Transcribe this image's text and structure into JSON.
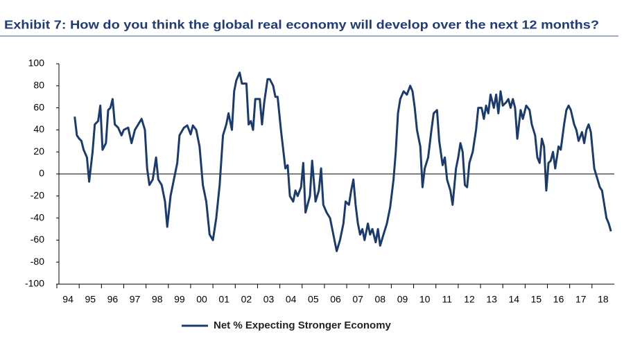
{
  "chart_data": {
    "type": "line",
    "title": "Exhibit 7: How do you think the global real economy will develop over the next 12 months?",
    "xlim": [
      1994,
      2019
    ],
    "xticks": [
      {
        "value": 1994,
        "label": "94"
      },
      {
        "value": 1995,
        "label": "95"
      },
      {
        "value": 1996,
        "label": "96"
      },
      {
        "value": 1997,
        "label": "97"
      },
      {
        "value": 1998,
        "label": "98"
      },
      {
        "value": 1999,
        "label": "99"
      },
      {
        "value": 2000,
        "label": "00"
      },
      {
        "value": 2001,
        "label": "01"
      },
      {
        "value": 2002,
        "label": "02"
      },
      {
        "value": 2003,
        "label": "03"
      },
      {
        "value": 2004,
        "label": "04"
      },
      {
        "value": 2005,
        "label": "05"
      },
      {
        "value": 2006,
        "label": "06"
      },
      {
        "value": 2007,
        "label": "07"
      },
      {
        "value": 2008,
        "label": "08"
      },
      {
        "value": 2009,
        "label": "09"
      },
      {
        "value": 2010,
        "label": "10"
      },
      {
        "value": 2011,
        "label": "11"
      },
      {
        "value": 2012,
        "label": "12"
      },
      {
        "value": 2013,
        "label": "13"
      },
      {
        "value": 2014,
        "label": "14"
      },
      {
        "value": 2015,
        "label": "15"
      },
      {
        "value": 2016,
        "label": "16"
      },
      {
        "value": 2017,
        "label": "17"
      },
      {
        "value": 2018,
        "label": "18"
      }
    ],
    "ylim": [
      -100,
      100
    ],
    "yticks": [
      -100,
      -80,
      -60,
      -40,
      -20,
      0,
      20,
      40,
      60,
      80,
      100
    ],
    "grid": false,
    "legend": "bottom",
    "x": [
      1994.8,
      1994.9,
      1995.0,
      1995.1,
      1995.2,
      1995.35,
      1995.45,
      1995.6,
      1995.7,
      1995.85,
      1995.95,
      1996.05,
      1996.2,
      1996.3,
      1996.4,
      1996.5,
      1996.6,
      1996.75,
      1996.9,
      1997.0,
      1997.2,
      1997.35,
      1997.5,
      1997.65,
      1997.8,
      1997.95,
      1998.05,
      1998.15,
      1998.3,
      1998.45,
      1998.55,
      1998.7,
      1998.85,
      1998.95,
      1999.1,
      1999.25,
      1999.4,
      1999.5,
      1999.7,
      1999.85,
      2000.0,
      2000.1,
      2000.25,
      2000.4,
      2000.55,
      2000.7,
      2000.85,
      2001.0,
      2001.15,
      2001.3,
      2001.45,
      2001.6,
      2001.7,
      2001.85,
      2001.95,
      2002.05,
      2002.2,
      2002.3,
      2002.5,
      2002.6,
      2002.7,
      2002.8,
      2002.9,
      2003.1,
      2003.2,
      2003.3,
      2003.45,
      2003.55,
      2003.7,
      2003.8,
      2003.9,
      2004.05,
      2004.25,
      2004.35,
      2004.45,
      2004.6,
      2004.7,
      2004.8,
      2004.95,
      2005.05,
      2005.15,
      2005.35,
      2005.45,
      2005.6,
      2005.75,
      2005.85,
      2005.95,
      2006.1,
      2006.25,
      2006.45,
      2006.55,
      2006.7,
      2006.85,
      2006.95,
      2007.1,
      2007.2,
      2007.3,
      2007.4,
      2007.5,
      2007.6,
      2007.7,
      2007.8,
      2007.95,
      2008.05,
      2008.15,
      2008.3,
      2008.4,
      2008.5,
      2008.65,
      2008.8,
      2008.95,
      2009.1,
      2009.2,
      2009.3,
      2009.4,
      2009.55,
      2009.7,
      2009.85,
      2009.95,
      2010.05,
      2010.15,
      2010.3,
      2010.4,
      2010.5,
      2010.65,
      2010.8,
      2010.9,
      2011.05,
      2011.15,
      2011.3,
      2011.4,
      2011.5,
      2011.65,
      2011.75,
      2011.9,
      2012.0,
      2012.1,
      2012.2,
      2012.3,
      2012.4,
      2012.5,
      2012.65,
      2012.8,
      2012.9,
      2013.05,
      2013.15,
      2013.25,
      2013.35,
      2013.45,
      2013.6,
      2013.7,
      2013.8,
      2013.9,
      2014.0,
      2014.15,
      2014.25,
      2014.35,
      2014.45,
      2014.55,
      2014.65,
      2014.8,
      2014.9,
      2015.05,
      2015.2,
      2015.3,
      2015.45,
      2015.55,
      2015.65,
      2015.75,
      2015.85,
      2015.95,
      2016.05,
      2016.15,
      2016.25,
      2016.35,
      2016.5,
      2016.6,
      2016.75,
      2016.85,
      2016.95,
      2017.05,
      2017.2,
      2017.3,
      2017.4,
      2017.55,
      2017.65,
      2017.75,
      2017.85,
      2017.95,
      2018.1,
      2018.25,
      2018.35,
      2018.45,
      2018.65,
      2018.75,
      2018.85
    ],
    "series": [
      {
        "name": "Net % Expecting Stronger Economy",
        "color": "#1b3b6f",
        "values": [
          52,
          35,
          32,
          30,
          22,
          15,
          -7,
          20,
          45,
          48,
          62,
          22,
          28,
          58,
          60,
          68,
          45,
          42,
          35,
          40,
          42,
          28,
          40,
          45,
          50,
          40,
          5,
          -10,
          -5,
          15,
          -5,
          -10,
          -25,
          -48,
          -20,
          -5,
          10,
          35,
          42,
          44,
          36,
          44,
          40,
          25,
          -10,
          -25,
          -55,
          -60,
          -40,
          -10,
          35,
          45,
          55,
          40,
          75,
          85,
          92,
          82,
          82,
          45,
          48,
          40,
          68,
          68,
          45,
          65,
          86,
          86,
          80,
          70,
          70,
          40,
          5,
          8,
          -20,
          -25,
          -15,
          -20,
          -12,
          10,
          -35,
          -20,
          12,
          -25,
          -15,
          5,
          -28,
          -35,
          -40,
          -60,
          -70,
          -60,
          -45,
          -25,
          -28,
          -15,
          -5,
          -28,
          -45,
          -55,
          -50,
          -60,
          -45,
          -55,
          -50,
          -62,
          -50,
          -65,
          -55,
          -45,
          -30,
          -5,
          20,
          55,
          68,
          75,
          72,
          80,
          75,
          60,
          40,
          25,
          -12,
          5,
          15,
          40,
          55,
          58,
          30,
          8,
          15,
          -5,
          -15,
          -28,
          5,
          15,
          28,
          20,
          -10,
          -12,
          10,
          20,
          40,
          60,
          60,
          50,
          62,
          55,
          72,
          60,
          72,
          55,
          75,
          62,
          65,
          68,
          60,
          68,
          60,
          32,
          58,
          50,
          62,
          58,
          45,
          35,
          15,
          10,
          32,
          25,
          -15,
          10,
          12,
          20,
          5,
          25,
          22,
          45,
          58,
          62,
          58,
          45,
          40,
          30,
          38,
          28,
          40,
          45,
          38,
          5,
          -5,
          -12,
          -15,
          -40,
          -45,
          -52
        ]
      }
    ]
  }
}
